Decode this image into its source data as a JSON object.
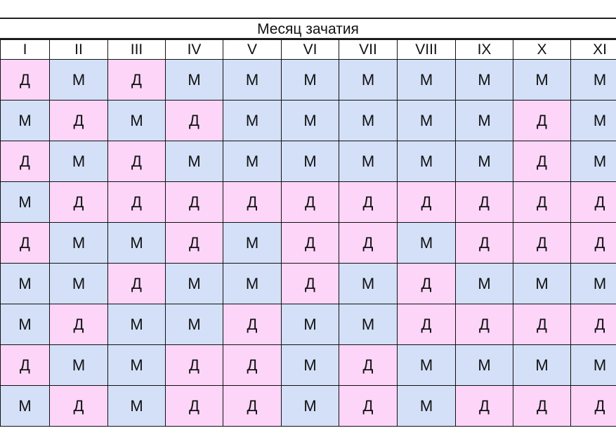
{
  "title": "Месяц зачатия",
  "columns": [
    "I",
    "II",
    "III",
    "IV",
    "V",
    "VI",
    "VII",
    "VIII",
    "IX",
    "X",
    "XI"
  ],
  "colors": {
    "Д": "#fdd5f9",
    "М": "#d3e0f8"
  },
  "rows": [
    [
      "Д",
      "М",
      "Д",
      "М",
      "М",
      "М",
      "М",
      "М",
      "М",
      "М",
      "М"
    ],
    [
      "М",
      "Д",
      "М",
      "Д",
      "М",
      "М",
      "М",
      "М",
      "М",
      "Д",
      "М"
    ],
    [
      "Д",
      "М",
      "Д",
      "М",
      "М",
      "М",
      "М",
      "М",
      "М",
      "Д",
      "М"
    ],
    [
      "М",
      "Д",
      "Д",
      "Д",
      "Д",
      "Д",
      "Д",
      "Д",
      "Д",
      "Д",
      "Д"
    ],
    [
      "Д",
      "М",
      "М",
      "Д",
      "М",
      "Д",
      "Д",
      "М",
      "Д",
      "Д",
      "Д"
    ],
    [
      "М",
      "М",
      "Д",
      "М",
      "М",
      "Д",
      "М",
      "Д",
      "М",
      "М",
      "М"
    ],
    [
      "М",
      "Д",
      "М",
      "М",
      "Д",
      "М",
      "М",
      "Д",
      "Д",
      "Д",
      "Д"
    ],
    [
      "Д",
      "М",
      "М",
      "Д",
      "Д",
      "М",
      "Д",
      "М",
      "М",
      "М",
      "М"
    ],
    [
      "М",
      "Д",
      "М",
      "Д",
      "Д",
      "М",
      "Д",
      "М",
      "Д",
      "Д",
      "Д"
    ]
  ]
}
